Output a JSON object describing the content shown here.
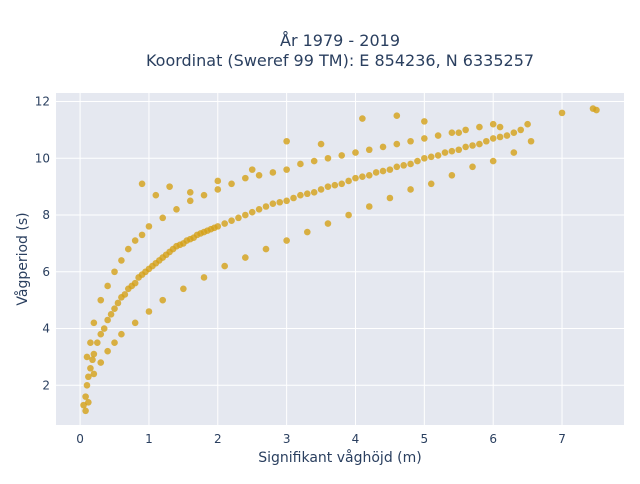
{
  "chart_data": {
    "type": "scatter",
    "title_lines": [
      "År 1979 - 2019",
      "Koordinat (Sweref 99 TM): E 854236, N 6335257"
    ],
    "xlabel": "Signifikant våghöjd (m)",
    "ylabel": "Vågperiod (s)",
    "xlim": [
      -0.35,
      7.9
    ],
    "ylim": [
      0.6,
      12.3
    ],
    "xticks": [
      0,
      1,
      2,
      3,
      4,
      5,
      6,
      7
    ],
    "yticks": [
      2,
      4,
      6,
      8,
      10,
      12
    ],
    "grid": true,
    "legend": "none",
    "marker_color": "#d4a017",
    "plot_bg": "#e5e8f0",
    "series": [
      {
        "x": [
          0.05,
          0.08,
          0.1,
          0.12,
          0.15,
          0.18,
          0.2,
          0.25,
          0.3,
          0.35,
          0.4,
          0.45,
          0.5,
          0.55,
          0.6,
          0.65,
          0.7,
          0.75,
          0.8,
          0.85,
          0.9,
          0.95,
          1.0,
          1.05,
          1.1,
          1.15,
          1.2,
          1.25,
          1.3,
          1.35,
          1.4,
          1.45,
          1.5,
          1.55,
          1.6,
          1.65,
          1.7,
          1.75,
          1.8,
          1.85,
          1.9,
          1.95,
          2.0,
          2.1,
          2.2,
          2.3,
          2.4,
          2.5,
          2.6,
          2.7,
          2.8,
          2.9,
          3.0,
          3.1,
          3.2,
          3.3,
          3.4,
          3.5,
          3.6,
          3.7,
          3.8,
          3.9,
          4.0,
          4.1,
          4.2,
          4.3,
          4.4,
          4.5,
          4.6,
          4.7,
          4.8,
          4.9,
          5.0,
          5.1,
          5.2,
          5.3,
          5.4,
          5.5,
          5.6,
          5.7,
          5.8,
          5.9,
          6.0,
          6.1,
          6.2,
          6.3,
          6.4,
          6.5,
          6.55,
          7.0,
          7.45,
          7.5,
          0.1,
          0.15,
          0.2,
          0.3,
          0.4,
          0.5,
          0.6,
          0.7,
          0.8,
          0.9,
          1.0,
          1.2,
          1.4,
          1.6,
          1.8,
          2.0,
          2.2,
          2.4,
          2.6,
          2.8,
          3.0,
          3.2,
          3.4,
          3.6,
          3.8,
          4.0,
          4.2,
          4.4,
          4.6,
          4.8,
          5.0,
          5.2,
          5.4,
          5.6,
          5.8,
          6.0,
          0.08,
          0.12,
          0.2,
          0.3,
          0.4,
          0.5,
          0.6,
          0.8,
          1.0,
          1.2,
          1.5,
          1.8,
          2.1,
          2.4,
          2.7,
          3.0,
          3.3,
          3.6,
          3.9,
          4.2,
          4.5,
          4.8,
          5.1,
          5.4,
          5.7,
          6.0,
          6.3,
          0.9,
          1.1,
          1.3,
          1.6,
          2.0,
          2.5,
          3.0,
          3.5,
          4.1,
          4.6,
          5.0,
          5.5,
          6.1
        ],
        "y": [
          1.3,
          1.6,
          2.0,
          2.3,
          2.6,
          2.9,
          3.1,
          3.5,
          3.8,
          4.0,
          4.3,
          4.5,
          4.7,
          4.9,
          5.1,
          5.2,
          5.4,
          5.5,
          5.6,
          5.8,
          5.9,
          6.0,
          6.1,
          6.2,
          6.3,
          6.4,
          6.5,
          6.6,
          6.7,
          6.8,
          6.9,
          6.95,
          7.0,
          7.1,
          7.15,
          7.2,
          7.3,
          7.35,
          7.4,
          7.45,
          7.5,
          7.55,
          7.6,
          7.7,
          7.8,
          7.9,
          8.0,
          8.1,
          8.2,
          8.3,
          8.4,
          8.45,
          8.5,
          8.6,
          8.7,
          8.75,
          8.8,
          8.9,
          9.0,
          9.05,
          9.1,
          9.2,
          9.3,
          9.35,
          9.4,
          9.5,
          9.55,
          9.6,
          9.7,
          9.75,
          9.8,
          9.9,
          10.0,
          10.05,
          10.1,
          10.2,
          10.25,
          10.3,
          10.4,
          10.45,
          10.5,
          10.6,
          10.7,
          10.75,
          10.8,
          10.9,
          11.0,
          11.2,
          10.6,
          11.6,
          11.75,
          11.7,
          3.0,
          3.5,
          4.2,
          5.0,
          5.5,
          6.0,
          6.4,
          6.8,
          7.1,
          7.3,
          7.6,
          7.9,
          8.2,
          8.5,
          8.7,
          8.9,
          9.1,
          9.3,
          9.4,
          9.5,
          9.6,
          9.8,
          9.9,
          10.0,
          10.1,
          10.2,
          10.3,
          10.4,
          10.5,
          10.6,
          10.7,
          10.8,
          10.9,
          11.0,
          11.1,
          11.2,
          1.1,
          1.4,
          2.4,
          2.8,
          3.2,
          3.5,
          3.8,
          4.2,
          4.6,
          5.0,
          5.4,
          5.8,
          6.2,
          6.5,
          6.8,
          7.1,
          7.4,
          7.7,
          8.0,
          8.3,
          8.6,
          8.9,
          9.1,
          9.4,
          9.7,
          9.9,
          10.2,
          9.1,
          8.7,
          9.0,
          8.8,
          9.2,
          9.6,
          10.6,
          10.5,
          11.4,
          11.5,
          11.3,
          10.9,
          11.1
        ]
      }
    ]
  }
}
